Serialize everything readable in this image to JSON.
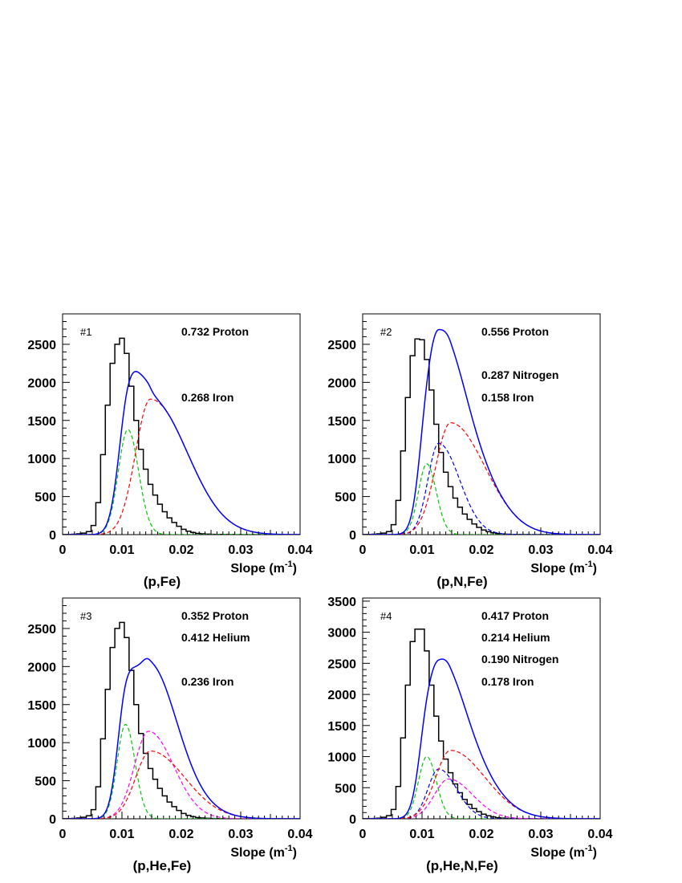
{
  "figure": {
    "description_free": true
  },
  "chart_data": [
    {
      "type": "histogram",
      "panel_label": "#1",
      "caption": "(p,Fe)",
      "xlabel": "Slope (m",
      "xlabel_sup": "-1",
      "xlabel_tail": ")",
      "xlim": [
        0,
        0.04
      ],
      "ylim": [
        0,
        2900
      ],
      "xticks": [
        "0",
        "0.01",
        "0.02",
        "0.03",
        "0.04"
      ],
      "xtick_values": [
        0,
        0.01,
        0.02,
        0.03,
        0.04
      ],
      "yticks": [
        "0",
        "500",
        "1000",
        "1500",
        "2000",
        "2500"
      ],
      "ytick_values": [
        0,
        500,
        1000,
        1500,
        2000,
        2500
      ],
      "annotations": [
        {
          "text": "0.732 Proton",
          "row": 0
        },
        {
          "text": "0.268 Iron",
          "row": 3
        }
      ],
      "histogram": {
        "bin_start": 0.0,
        "bin_width": 0.0008,
        "counts": [
          0,
          2,
          5,
          10,
          20,
          40,
          120,
          420,
          1050,
          1700,
          2250,
          2500,
          2580,
          2380,
          1950,
          1500,
          1120,
          860,
          660,
          520,
          400,
          300,
          220,
          160,
          110,
          70,
          45,
          28,
          16,
          10,
          6,
          4,
          3,
          2,
          1,
          1,
          0,
          0,
          0,
          0,
          0,
          0,
          0,
          0,
          0,
          0,
          0,
          0,
          0,
          0
        ],
        "color": "#000000"
      },
      "components": [
        {
          "name": "Proton",
          "color": "#00cc00",
          "dashed": true,
          "amplitude": 1380,
          "mean": 0.011,
          "sigma_left": 0.0016,
          "sigma_right": 0.0018
        },
        {
          "name": "Iron",
          "color": "#ff0000",
          "dashed": true,
          "amplitude": 1780,
          "mean": 0.0148,
          "sigma_left": 0.0025,
          "sigma_right": 0.0062
        }
      ],
      "fit": {
        "color": "#0000ff",
        "secondary_color": "#800080"
      }
    },
    {
      "type": "histogram",
      "panel_label": "#2",
      "caption": "(p,N,Fe)",
      "xlabel": "Slope (m",
      "xlabel_sup": "-1",
      "xlabel_tail": ")",
      "xlim": [
        0,
        0.04
      ],
      "ylim": [
        0,
        2900
      ],
      "xticks": [
        "0",
        "0.01",
        "0.02",
        "0.03",
        "0.04"
      ],
      "xtick_values": [
        0,
        0.01,
        0.02,
        0.03,
        0.04
      ],
      "yticks": [
        "0",
        "500",
        "1000",
        "1500",
        "2000",
        "2500"
      ],
      "ytick_values": [
        0,
        500,
        1000,
        1500,
        2000,
        2500
      ],
      "annotations": [
        {
          "text": "0.556 Proton",
          "row": 0
        },
        {
          "text": "0.287 Nitrogen",
          "row": 2
        },
        {
          "text": "0.158 Iron",
          "row": 3
        }
      ],
      "histogram": {
        "bin_start": 0.0,
        "bin_width": 0.0008,
        "counts": [
          0,
          2,
          5,
          10,
          20,
          40,
          130,
          450,
          1100,
          1800,
          2350,
          2570,
          2560,
          2300,
          1900,
          1450,
          1080,
          820,
          630,
          480,
          360,
          270,
          200,
          140,
          95,
          60,
          38,
          24,
          14,
          9,
          5,
          3,
          2,
          1,
          1,
          0,
          0,
          0,
          0,
          0,
          0,
          0,
          0,
          0,
          0,
          0,
          0,
          0,
          0,
          0
        ],
        "color": "#000000"
      },
      "components": [
        {
          "name": "Proton",
          "color": "#00cc00",
          "dashed": true,
          "amplitude": 930,
          "mean": 0.0108,
          "sigma_left": 0.0014,
          "sigma_right": 0.0016
        },
        {
          "name": "Nitrogen",
          "color": "#0000ff",
          "dashed": true,
          "amplitude": 1200,
          "mean": 0.0128,
          "sigma_left": 0.0018,
          "sigma_right": 0.0035
        },
        {
          "name": "Iron",
          "color": "#ff0000",
          "dashed": true,
          "amplitude": 1470,
          "mean": 0.0148,
          "sigma_left": 0.0025,
          "sigma_right": 0.0058
        }
      ],
      "fit": {
        "color": "#0000ff",
        "secondary_color": "#800080"
      }
    },
    {
      "type": "histogram",
      "panel_label": "#3",
      "caption": "(p,He,Fe)",
      "xlabel": "Slope (m",
      "xlabel_sup": "-1",
      "xlabel_tail": ")",
      "xlim": [
        0,
        0.04
      ],
      "ylim": [
        0,
        2900
      ],
      "xticks": [
        "0",
        "0.01",
        "0.02",
        "0.03",
        "0.04"
      ],
      "xtick_values": [
        0,
        0.01,
        0.02,
        0.03,
        0.04
      ],
      "yticks": [
        "0",
        "500",
        "1000",
        "1500",
        "2000",
        "2500"
      ],
      "ytick_values": [
        0,
        500,
        1000,
        1500,
        2000,
        2500
      ],
      "annotations": [
        {
          "text": "0.352 Proton",
          "row": 0
        },
        {
          "text": "0.412 Helium",
          "row": 1
        },
        {
          "text": "0.236 Iron",
          "row": 3
        }
      ],
      "histogram": {
        "bin_start": 0.0,
        "bin_width": 0.0008,
        "counts": [
          0,
          2,
          5,
          10,
          20,
          40,
          120,
          420,
          1050,
          1700,
          2250,
          2500,
          2580,
          2380,
          1950,
          1500,
          1120,
          860,
          660,
          520,
          400,
          300,
          220,
          160,
          110,
          70,
          45,
          28,
          16,
          10,
          6,
          4,
          3,
          2,
          1,
          1,
          0,
          0,
          0,
          0,
          0,
          0,
          0,
          0,
          0,
          0,
          0,
          0,
          0,
          0
        ],
        "color": "#000000"
      },
      "components": [
        {
          "name": "Proton",
          "color": "#00cc00",
          "dashed": true,
          "amplitude": 1240,
          "mean": 0.0106,
          "sigma_left": 0.0014,
          "sigma_right": 0.0016
        },
        {
          "name": "Helium",
          "color": "#ff00ff",
          "dashed": true,
          "amplitude": 1150,
          "mean": 0.0145,
          "sigma_left": 0.0024,
          "sigma_right": 0.0042
        },
        {
          "name": "Iron",
          "color": "#ff0000",
          "dashed": true,
          "amplitude": 890,
          "mean": 0.0148,
          "sigma_left": 0.0025,
          "sigma_right": 0.0058
        }
      ],
      "fit": {
        "color": "#0000ff",
        "secondary_color": "#800080"
      }
    },
    {
      "type": "histogram",
      "panel_label": "#4",
      "caption": "(p,He,N,Fe)",
      "xlabel": "Slope (m",
      "xlabel_sup": "-1",
      "xlabel_tail": ")",
      "xlim": [
        0,
        0.04
      ],
      "ylim": [
        0,
        3550
      ],
      "xticks": [
        "0",
        "0.01",
        "0.02",
        "0.03",
        "0.04"
      ],
      "xtick_values": [
        0,
        0.01,
        0.02,
        0.03,
        0.04
      ],
      "yticks": [
        "0",
        "500",
        "1000",
        "1500",
        "2000",
        "2500",
        "3000",
        "3500"
      ],
      "ytick_values": [
        0,
        500,
        1000,
        1500,
        2000,
        2500,
        3000,
        3500
      ],
      "annotations": [
        {
          "text": "0.417 Proton",
          "row": 0
        },
        {
          "text": "0.214 Helium",
          "row": 1
        },
        {
          "text": "0.190 Nitrogen",
          "row": 2
        },
        {
          "text": "0.178 Iron",
          "row": 3
        }
      ],
      "histogram": {
        "bin_start": 0.0,
        "bin_width": 0.0008,
        "counts": [
          0,
          2,
          5,
          10,
          25,
          50,
          150,
          520,
          1300,
          2150,
          2850,
          3050,
          3050,
          2700,
          2150,
          1650,
          1250,
          960,
          740,
          560,
          420,
          310,
          230,
          165,
          115,
          75,
          48,
          30,
          18,
          11,
          6,
          4,
          3,
          2,
          1,
          1,
          0,
          0,
          0,
          0,
          0,
          0,
          0,
          0,
          0,
          0,
          0,
          0,
          0,
          0
        ],
        "color": "#000000"
      },
      "components": [
        {
          "name": "Proton",
          "color": "#00cc00",
          "dashed": true,
          "amplitude": 1000,
          "mean": 0.0108,
          "sigma_left": 0.0014,
          "sigma_right": 0.0016
        },
        {
          "name": "Nitrogen",
          "color": "#0000ff",
          "dashed": true,
          "amplitude": 800,
          "mean": 0.0128,
          "sigma_left": 0.0018,
          "sigma_right": 0.003
        },
        {
          "name": "Helium",
          "color": "#ff00ff",
          "dashed": true,
          "amplitude": 640,
          "mean": 0.0145,
          "sigma_left": 0.0024,
          "sigma_right": 0.004
        },
        {
          "name": "Iron",
          "color": "#ff0000",
          "dashed": true,
          "amplitude": 1100,
          "mean": 0.0148,
          "sigma_left": 0.0025,
          "sigma_right": 0.0058
        }
      ],
      "fit": {
        "color": "#0000ff",
        "secondary_color": "#800080"
      }
    }
  ]
}
